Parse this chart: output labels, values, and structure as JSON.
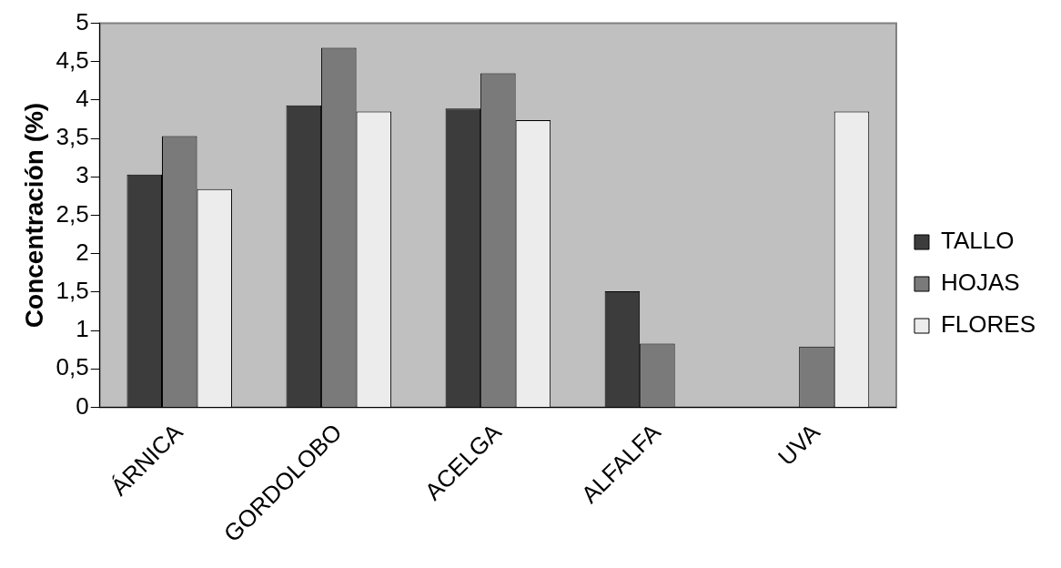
{
  "chart_data": {
    "type": "bar",
    "ylabel": "Concentración (%)",
    "categories": [
      "ÁRNICA",
      "GORDOLOBO",
      "ACELGA",
      "ALFALFA",
      "UVA"
    ],
    "series": [
      {
        "name": "TALLO",
        "color": "#3c3c3c",
        "values": [
          3.03,
          3.93,
          3.89,
          1.51,
          null
        ]
      },
      {
        "name": "HOJAS",
        "color": "#7a7a7a",
        "values": [
          3.53,
          4.68,
          4.35,
          0.83,
          0.79
        ]
      },
      {
        "name": "FLORES",
        "color": "#ececec",
        "values": [
          2.84,
          3.85,
          3.74,
          null,
          3.85
        ]
      }
    ],
    "ylim": [
      0,
      5
    ],
    "yticks": [
      0,
      {
        "value": 0.5,
        "label": "0,5"
      },
      1,
      {
        "value": 1.5,
        "label": "1,5"
      },
      2,
      {
        "value": 2.5,
        "label": "2,5"
      },
      3,
      {
        "value": 3.5,
        "label": "3,5"
      },
      4,
      {
        "value": 4.5,
        "label": "4,5"
      },
      5
    ],
    "grid": false,
    "legend": "right"
  }
}
